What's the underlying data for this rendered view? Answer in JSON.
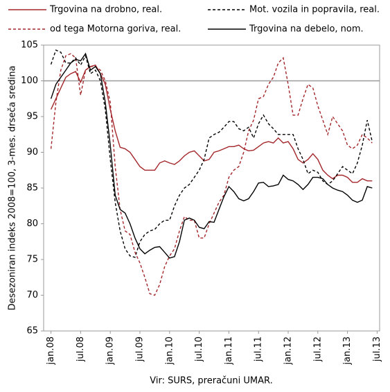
{
  "chart_data": {
    "type": "line",
    "y_label": "Desezoniran indeks 2008=100, 3-mes. drseča sredina",
    "source": "Vir: SURS, preračuni UMAR.",
    "categories": [
      "jan.08",
      null,
      null,
      null,
      null,
      null,
      "jul.08",
      null,
      null,
      null,
      null,
      null,
      "jan.09",
      null,
      null,
      null,
      null,
      null,
      "jul.09",
      null,
      null,
      null,
      null,
      null,
      "jan.10",
      null,
      null,
      null,
      null,
      null,
      "jul.10",
      null,
      null,
      null,
      null,
      null,
      "jan.11",
      null,
      null,
      null,
      null,
      null,
      "jul.11",
      null,
      null,
      null,
      null,
      null,
      "jan.12",
      null,
      null,
      null,
      null,
      null,
      "jul.12",
      null,
      null,
      null,
      null,
      null,
      "jan.13",
      null,
      null,
      null,
      null,
      null,
      "jul.13"
    ],
    "series": [
      {
        "name": "Trgovina na drobno, real.",
        "color": "#a3262a",
        "dash": false,
        "values": [
          96,
          97.5,
          99,
          100.5,
          101,
          101.3,
          99.8,
          101.5,
          102,
          102.2,
          101,
          99.5,
          96,
          93,
          90.7,
          90.5,
          90,
          89,
          88,
          87.5,
          87.5,
          87.5,
          88.5,
          88.8,
          88.5,
          88.3,
          88.8,
          89.5,
          90,
          90.2,
          89.5,
          88.8,
          89,
          90,
          90.2,
          90.5,
          90.8,
          90.8,
          91,
          90.5,
          90.2,
          90.3,
          90.8,
          91.3,
          91.5,
          91.3,
          92,
          91.3,
          91.5,
          90.5,
          89,
          88.5,
          89,
          89.8,
          89,
          87.5,
          86.8,
          86.3,
          86.8,
          86.8,
          86.5,
          85.8,
          85.8,
          86.3,
          86,
          86,
          null
        ]
      },
      {
        "name": "Mot. vozila in popravila, real.",
        "color": "#000000",
        "dash": true,
        "values": [
          102.3,
          104.3,
          104,
          102.5,
          102.5,
          103.2,
          102.2,
          103.5,
          101,
          101.5,
          100,
          96,
          89,
          83,
          79,
          76.5,
          75.5,
          75.3,
          77.5,
          78.5,
          79,
          79.2,
          80,
          80.5,
          80.5,
          82.5,
          84,
          85,
          85.5,
          86.5,
          87.5,
          89,
          92,
          92.5,
          92.8,
          93.5,
          94.3,
          94.3,
          93.3,
          93,
          93.5,
          92,
          94,
          95.2,
          94,
          93.3,
          92.5,
          92.5,
          92.5,
          92.5,
          90.5,
          89,
          87,
          87.5,
          87.2,
          86,
          85.5,
          86,
          87,
          88,
          87.5,
          87,
          88.5,
          91,
          94.5,
          91.5,
          null
        ]
      },
      {
        "name": "od tega Motorna goriva, real.",
        "color": "#a3262a",
        "dash": true,
        "values": [
          90.5,
          97,
          101.5,
          103.5,
          103.8,
          103.2,
          98,
          101.5,
          102,
          102,
          101.5,
          100,
          97,
          88,
          82,
          79,
          78.5,
          76,
          74.5,
          72.5,
          70.2,
          70,
          71.5,
          74,
          75.5,
          76.5,
          79,
          81,
          80.5,
          80.5,
          78,
          78,
          80,
          81.5,
          83,
          84,
          86.5,
          87.5,
          88,
          90,
          93,
          94.5,
          97.5,
          97.8,
          99.5,
          100.5,
          102.5,
          103.2,
          99.5,
          95.2,
          95.2,
          97.5,
          99.5,
          99,
          96.5,
          94.5,
          92.5,
          95,
          94,
          93,
          91,
          90.5,
          91,
          92.5,
          92,
          91.3,
          null
        ]
      },
      {
        "name": "Trgovina na debelo, nom.",
        "color": "#000000",
        "dash": false,
        "values": [
          97.5,
          99.5,
          100.5,
          101.5,
          102.5,
          103,
          102.8,
          103.8,
          101.5,
          102,
          101,
          97,
          91,
          84,
          82,
          81.5,
          80,
          78,
          76.5,
          75.8,
          76.3,
          76.7,
          76.8,
          76,
          75.2,
          75.4,
          77.5,
          80.5,
          80.8,
          80.5,
          79.5,
          79.3,
          80.3,
          80.2,
          82,
          83.8,
          85.2,
          84.5,
          83.5,
          83.2,
          83.5,
          84.5,
          85.7,
          85.8,
          85.2,
          85.3,
          85.5,
          86.8,
          86.2,
          86,
          85.5,
          84.8,
          85.5,
          86.5,
          86.5,
          86.3,
          85.5,
          85,
          84.7,
          84.5,
          84,
          83.3,
          83,
          83.3,
          85.2,
          85,
          null
        ]
      }
    ],
    "reference_line": 100,
    "ylim": [
      65,
      105
    ],
    "yticks": [
      65,
      70,
      75,
      80,
      85,
      90,
      95,
      100,
      105
    ]
  }
}
